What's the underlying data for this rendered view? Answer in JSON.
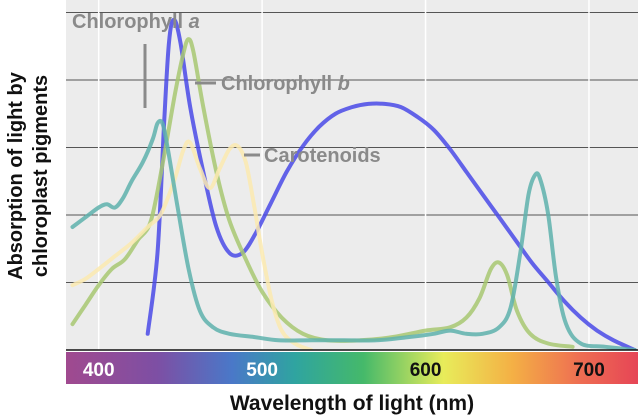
{
  "chart_data": {
    "type": "line",
    "title": "",
    "xlabel": "Wavelength of light (nm)",
    "ylabel_lines": [
      "Absorption of light by",
      "chloroplast pigments"
    ],
    "xlim": [
      380,
      730
    ],
    "ylim": [
      0,
      1.05
    ],
    "x_ticks": [
      400,
      500,
      600,
      700
    ],
    "tick_colors": [
      "#ffffff",
      "#ffffff",
      "#111111",
      "#111111"
    ],
    "grid": "horizontal",
    "background": "#ececec",
    "series": [
      {
        "name": "Chlorophyll a",
        "color": "#4a4ae8",
        "points": [
          [
            430,
            0.05
          ],
          [
            436,
            0.3
          ],
          [
            440,
            0.7
          ],
          [
            443,
            0.95
          ],
          [
            446,
            1.02
          ],
          [
            450,
            0.95
          ],
          [
            456,
            0.75
          ],
          [
            464,
            0.55
          ],
          [
            472,
            0.38
          ],
          [
            480,
            0.3
          ],
          [
            488,
            0.3
          ],
          [
            496,
            0.36
          ],
          [
            505,
            0.45
          ],
          [
            515,
            0.55
          ],
          [
            525,
            0.63
          ],
          [
            535,
            0.69
          ],
          [
            545,
            0.73
          ],
          [
            555,
            0.75
          ],
          [
            565,
            0.76
          ],
          [
            575,
            0.76
          ],
          [
            585,
            0.75
          ],
          [
            595,
            0.72
          ],
          [
            605,
            0.68
          ],
          [
            615,
            0.62
          ],
          [
            625,
            0.55
          ],
          [
            635,
            0.48
          ],
          [
            645,
            0.41
          ],
          [
            655,
            0.34
          ],
          [
            665,
            0.27
          ],
          [
            675,
            0.21
          ],
          [
            685,
            0.15
          ],
          [
            695,
            0.1
          ],
          [
            705,
            0.06
          ],
          [
            715,
            0.03
          ],
          [
            728,
            0.0
          ]
        ]
      },
      {
        "name": "Chlorophyll b",
        "color": "#a8c872",
        "points": [
          [
            384,
            0.08
          ],
          [
            392,
            0.14
          ],
          [
            400,
            0.2
          ],
          [
            408,
            0.25
          ],
          [
            416,
            0.28
          ],
          [
            424,
            0.34
          ],
          [
            432,
            0.4
          ],
          [
            440,
            0.6
          ],
          [
            447,
            0.8
          ],
          [
            452,
            0.92
          ],
          [
            455,
            0.96
          ],
          [
            458,
            0.92
          ],
          [
            464,
            0.75
          ],
          [
            472,
            0.55
          ],
          [
            480,
            0.4
          ],
          [
            490,
            0.28
          ],
          [
            500,
            0.18
          ],
          [
            512,
            0.1
          ],
          [
            525,
            0.05
          ],
          [
            540,
            0.03
          ],
          [
            560,
            0.03
          ],
          [
            580,
            0.04
          ],
          [
            600,
            0.06
          ],
          [
            615,
            0.07
          ],
          [
            625,
            0.1
          ],
          [
            633,
            0.16
          ],
          [
            640,
            0.25
          ],
          [
            645,
            0.27
          ],
          [
            650,
            0.23
          ],
          [
            656,
            0.12
          ],
          [
            664,
            0.05
          ],
          [
            675,
            0.02
          ],
          [
            690,
            0.01
          ]
        ]
      },
      {
        "name": "Carotenoids",
        "color": "#fbeab0",
        "points": [
          [
            384,
            0.2
          ],
          [
            392,
            0.22
          ],
          [
            400,
            0.25
          ],
          [
            410,
            0.29
          ],
          [
            420,
            0.33
          ],
          [
            430,
            0.38
          ],
          [
            438,
            0.42
          ],
          [
            446,
            0.52
          ],
          [
            452,
            0.62
          ],
          [
            456,
            0.64
          ],
          [
            462,
            0.56
          ],
          [
            468,
            0.5
          ],
          [
            474,
            0.56
          ],
          [
            480,
            0.62
          ],
          [
            485,
            0.63
          ],
          [
            490,
            0.58
          ],
          [
            495,
            0.45
          ],
          [
            500,
            0.3
          ],
          [
            506,
            0.15
          ],
          [
            512,
            0.06
          ],
          [
            520,
            0.02
          ],
          [
            530,
            0.0
          ]
        ]
      },
      {
        "name": "",
        "color": "#5eb1ad",
        "points": [
          [
            384,
            0.38
          ],
          [
            392,
            0.41
          ],
          [
            400,
            0.44
          ],
          [
            405,
            0.45
          ],
          [
            410,
            0.44
          ],
          [
            415,
            0.47
          ],
          [
            420,
            0.52
          ],
          [
            427,
            0.58
          ],
          [
            433,
            0.65
          ],
          [
            436,
            0.7
          ],
          [
            439,
            0.7
          ],
          [
            442,
            0.63
          ],
          [
            448,
            0.45
          ],
          [
            455,
            0.25
          ],
          [
            462,
            0.12
          ],
          [
            470,
            0.07
          ],
          [
            480,
            0.05
          ],
          [
            495,
            0.04
          ],
          [
            510,
            0.03
          ],
          [
            530,
            0.03
          ],
          [
            550,
            0.03
          ],
          [
            570,
            0.03
          ],
          [
            590,
            0.04
          ],
          [
            605,
            0.05
          ],
          [
            615,
            0.06
          ],
          [
            625,
            0.05
          ],
          [
            635,
            0.05
          ],
          [
            645,
            0.07
          ],
          [
            652,
            0.13
          ],
          [
            658,
            0.3
          ],
          [
            663,
            0.48
          ],
          [
            667,
            0.54
          ],
          [
            670,
            0.53
          ],
          [
            675,
            0.42
          ],
          [
            680,
            0.22
          ],
          [
            686,
            0.08
          ],
          [
            695,
            0.02
          ],
          [
            710,
            0.01
          ],
          [
            728,
            0.0
          ]
        ]
      }
    ],
    "annotations": [
      {
        "label": "Chlorophyll",
        "italic": "a",
        "target": "Chlorophyll a"
      },
      {
        "label": "Chlorophyll",
        "italic": "b",
        "target": "Chlorophyll b"
      },
      {
        "label": "Carotenoids",
        "italic": "",
        "target": "Carotenoids"
      }
    ]
  }
}
